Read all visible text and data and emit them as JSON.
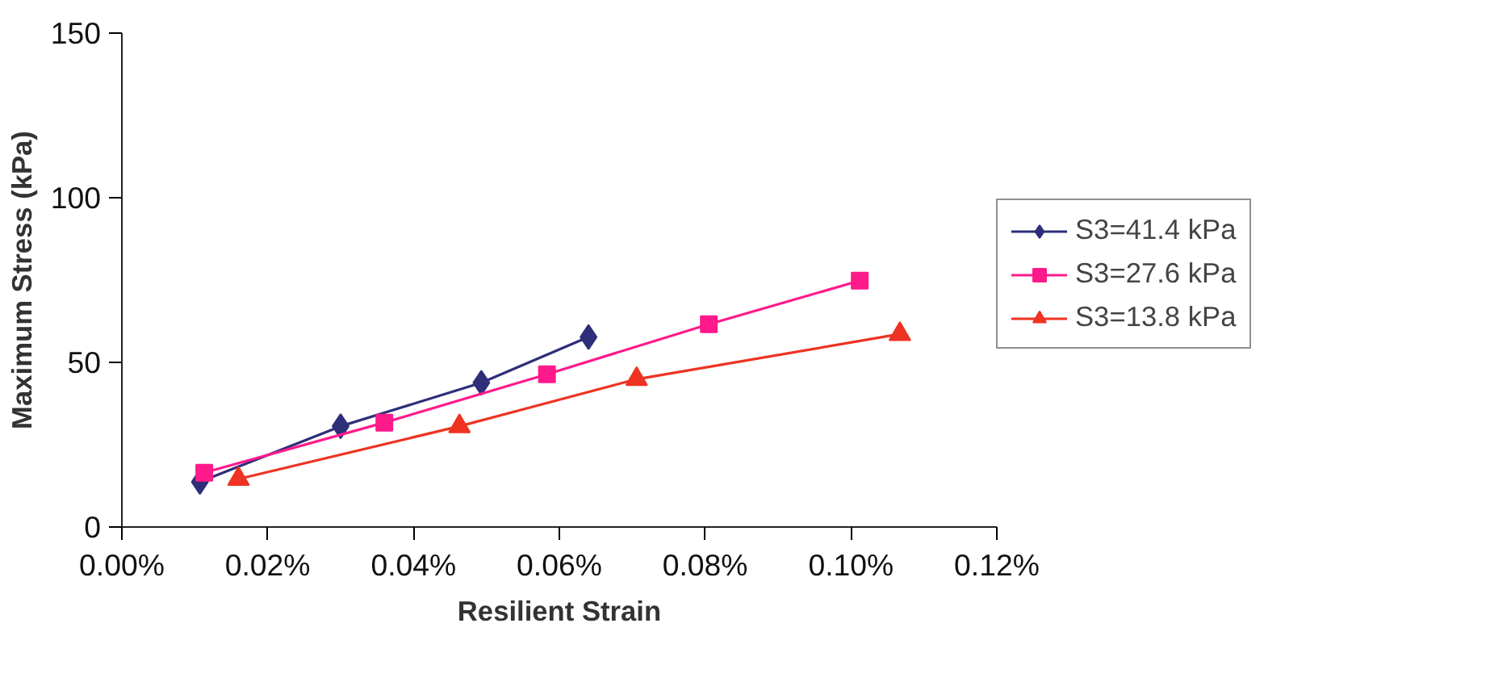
{
  "chart_data": {
    "type": "line",
    "xlabel": "Resilient Strain",
    "ylabel": "Maximum Stress (kPa)",
    "xlim": [
      0,
      0.12
    ],
    "xticks": [
      {
        "value": 0,
        "label": "0.00%"
      },
      {
        "value": 0.02,
        "label": "0.02%"
      },
      {
        "value": 0.04,
        "label": "0.04%"
      },
      {
        "value": 0.06,
        "label": "0.06%"
      },
      {
        "value": 0.08,
        "label": "0.08%"
      },
      {
        "value": 0.1,
        "label": "0.10%"
      },
      {
        "value": 0.12,
        "label": "0.12%"
      }
    ],
    "ylim": [
      0,
      150
    ],
    "yticks": [
      0,
      50,
      100,
      150
    ],
    "grid": false,
    "legend": "right",
    "line_style": "solid",
    "series": [
      {
        "name": "S3=41.4 kPa",
        "color": "#2e2f78",
        "marker": "diamond",
        "x": [
          0.0107,
          0.03,
          0.0493,
          0.064
        ],
        "values": [
          13.7,
          30.6,
          43.8,
          57.7
        ]
      },
      {
        "name": "S3=27.6 kPa",
        "color": "#ff1a8c",
        "marker": "square",
        "x": [
          0.0113,
          0.036,
          0.0583,
          0.0805,
          0.1012
        ],
        "values": [
          16.5,
          31.7,
          46.4,
          61.6,
          74.8
        ]
      },
      {
        "name": "S3=13.8 kPa",
        "color": "#ee3322",
        "marker": "triangle",
        "x": [
          0.016,
          0.0463,
          0.0706,
          0.1067
        ],
        "values": [
          14.6,
          30.6,
          44.9,
          58.6
        ]
      }
    ]
  }
}
